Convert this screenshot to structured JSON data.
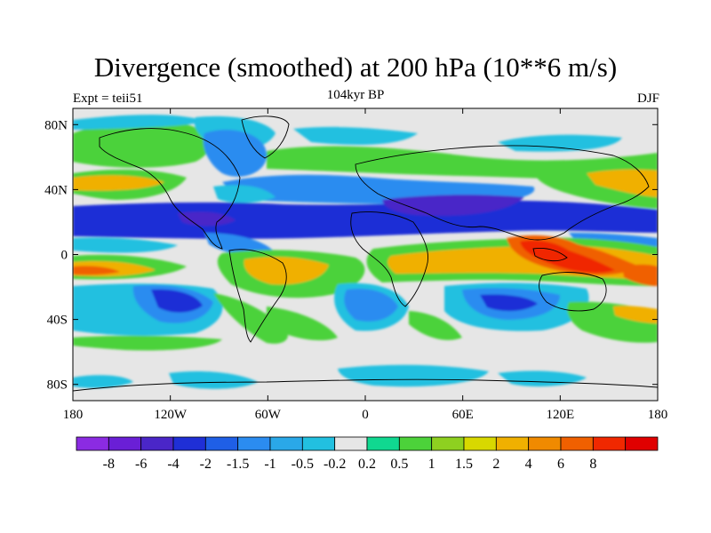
{
  "title": "Divergence (smoothed) at 200 hPa (10**6 m/s)",
  "left_label": "Expt = teii51",
  "center_label": "104kyr BP",
  "right_label": "DJF",
  "lat_ticks": [
    {
      "value": 80,
      "label": "80N"
    },
    {
      "value": 40,
      "label": "40N"
    },
    {
      "value": 0,
      "label": "0"
    },
    {
      "value": -40,
      "label": "40S"
    },
    {
      "value": -80,
      "label": "80S"
    }
  ],
  "lon_ticks": [
    {
      "value": -180,
      "label": "180"
    },
    {
      "value": -120,
      "label": "120W"
    },
    {
      "value": -60,
      "label": "60W"
    },
    {
      "value": 0,
      "label": "0"
    },
    {
      "value": 60,
      "label": "60E"
    },
    {
      "value": 120,
      "label": "120E"
    },
    {
      "value": 180,
      "label": "180"
    }
  ],
  "colorbar": {
    "colors": [
      "#8b2be2",
      "#6a1fd6",
      "#4a26c8",
      "#1f2fd6",
      "#1f5fe6",
      "#2b8cf0",
      "#2aa8e8",
      "#22c0e0",
      "#e6e6e6",
      "#10d890",
      "#4cd23a",
      "#8ed020",
      "#d8d800",
      "#f0b000",
      "#f08a00",
      "#f06000",
      "#f02800",
      "#e00000"
    ],
    "labels": [
      "-8",
      "-6",
      "-4",
      "-2",
      "-1.5",
      "-1",
      "-0.5",
      "-0.2",
      "0.2",
      "0.5",
      "1",
      "1.5",
      "2",
      "4",
      "6",
      "8"
    ]
  },
  "map_colors": {
    "background": "#e6e6e6",
    "strong_convergence": "#1f2fd6",
    "very_strong_convergence": "#4a26c8",
    "convergence": "#2b8cf0",
    "weak_convergence": "#22c0e0",
    "weak_divergence": "#4cd23a",
    "divergence": "#f0b000",
    "strong_divergence": "#f06000",
    "very_strong_divergence": "#f02800"
  }
}
